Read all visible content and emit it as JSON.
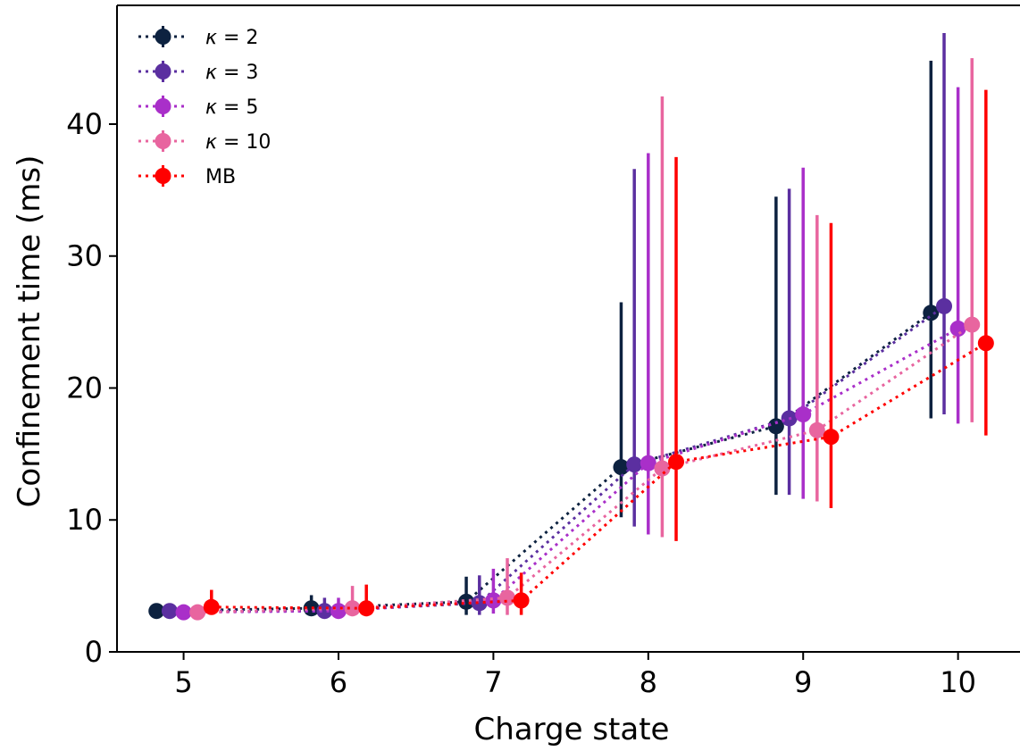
{
  "chart_data": {
    "type": "scatter",
    "xlabel": "Charge state",
    "ylabel": "Confinement time (ms)",
    "x": [
      5,
      6,
      7,
      8,
      9,
      10
    ],
    "xticks": [
      "5",
      "6",
      "7",
      "8",
      "9",
      "10"
    ],
    "yticks": [
      0,
      10,
      20,
      30,
      40
    ],
    "xlim": [
      4.57,
      10.4
    ],
    "ylim": [
      0,
      49
    ],
    "grid": false,
    "legend_position": "top-left",
    "line_style": "dotted",
    "error_bars": true,
    "series": [
      {
        "name": "κ = 2",
        "legend_symbol": "κ",
        "legend_value": "= 2",
        "color": "#0d2240",
        "offset": -0.175,
        "values": [
          3.1,
          3.3,
          3.8,
          14.0,
          17.1,
          25.7
        ],
        "err_low": [
          3.0,
          2.8,
          2.8,
          10.2,
          11.9,
          17.7
        ],
        "err_high": [
          3.3,
          4.3,
          5.7,
          26.5,
          34.5,
          44.8
        ]
      },
      {
        "name": "κ = 3",
        "legend_symbol": "κ",
        "legend_value": "= 3",
        "color": "#5b2fa0",
        "offset": -0.09,
        "values": [
          3.1,
          3.1,
          3.7,
          14.2,
          17.7,
          26.2
        ],
        "err_low": [
          2.9,
          2.7,
          2.8,
          9.5,
          11.9,
          18.0
        ],
        "err_high": [
          3.3,
          4.1,
          5.8,
          36.6,
          35.1,
          46.9
        ]
      },
      {
        "name": "κ = 5",
        "legend_symbol": "κ",
        "legend_value": "= 5",
        "color": "#a92fc9",
        "offset": 0.0,
        "values": [
          3.0,
          3.1,
          3.9,
          14.3,
          18.0,
          24.5
        ],
        "err_low": [
          2.8,
          2.7,
          2.9,
          8.9,
          11.6,
          17.3
        ],
        "err_high": [
          3.3,
          4.1,
          6.3,
          37.8,
          36.7,
          42.8
        ]
      },
      {
        "name": "κ = 10",
        "legend_symbol": "κ",
        "legend_value": "= 10",
        "color": "#e8659f",
        "offset": 0.09,
        "values": [
          3.0,
          3.3,
          4.1,
          13.9,
          16.8,
          24.8
        ],
        "err_low": [
          2.8,
          2.7,
          2.8,
          8.7,
          11.4,
          17.4
        ],
        "err_high": [
          3.3,
          5.0,
          7.1,
          42.1,
          33.1,
          45.0
        ]
      },
      {
        "name": "MB",
        "legend_symbol": "",
        "legend_value": "MB",
        "color": "#ff0000",
        "offset": 0.18,
        "values": [
          3.4,
          3.3,
          3.9,
          14.4,
          16.3,
          23.4
        ],
        "err_low": [
          2.9,
          2.7,
          2.8,
          8.4,
          10.9,
          16.4
        ],
        "err_high": [
          4.7,
          5.1,
          6.0,
          37.5,
          32.5,
          42.6
        ]
      }
    ]
  }
}
